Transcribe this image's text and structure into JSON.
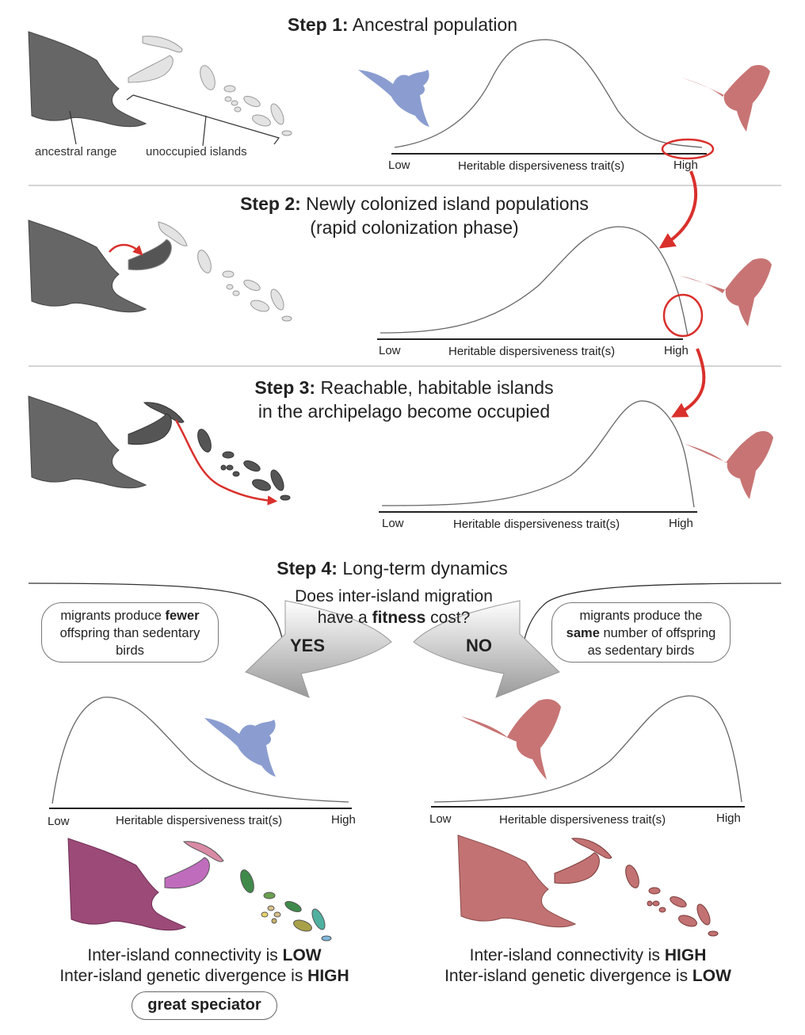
{
  "step1": {
    "label": "Step 1:",
    "title": "Ancestral population",
    "ancestral_range": "ancestral range",
    "unoccupied_islands": "unoccupied islands"
  },
  "step2": {
    "label": "Step 2:",
    "title_line1": "Newly colonized island populations",
    "title_line2": "(rapid colonization phase)"
  },
  "step3": {
    "label": "Step 3:",
    "title_line1": "Reachable, habitable islands",
    "title_line2": "in the archipelago become occupied"
  },
  "step4": {
    "label": "Step 4:",
    "title": "Long-term dynamics",
    "question_line1": "Does inter-island migration",
    "question_line2_pre": "have a ",
    "question_line2_bold": "fitness",
    "question_line2_post": " cost?",
    "yes": "YES",
    "no": "NO"
  },
  "axis": {
    "xlabel": "Heritable dispersiveness trait(s)",
    "low": "Low",
    "high": "High"
  },
  "bubble_yes": {
    "pre": "migrants produce ",
    "bold": "fewer",
    "line2": "offspring than sedentary",
    "line3": "birds"
  },
  "bubble_no": {
    "line1": "migrants produce the",
    "bold": "same",
    "line2_post": " number of offspring",
    "line3": "as sedentary birds"
  },
  "conclusion_yes": {
    "line1_pre": "Inter-island connectivity is ",
    "line1_bold": "LOW",
    "line2_pre": "Inter-island genetic divergence is ",
    "line2_bold": "HIGH",
    "badge": "great speciator"
  },
  "conclusion_no": {
    "line1_pre": "Inter-island connectivity is ",
    "line1_bold": "HIGH",
    "line2_pre": "Inter-island genetic divergence is ",
    "line2_bold": "LOW"
  },
  "colors": {
    "blue_bird": "#8b9dd0",
    "red_bird": "#c87474",
    "mainland": "#666666",
    "island_empty": "#e3e3e3",
    "island_occupied": "#555555",
    "arrow": "#d9302c",
    "purple": "#9c4a78",
    "pink": "#c27272"
  }
}
